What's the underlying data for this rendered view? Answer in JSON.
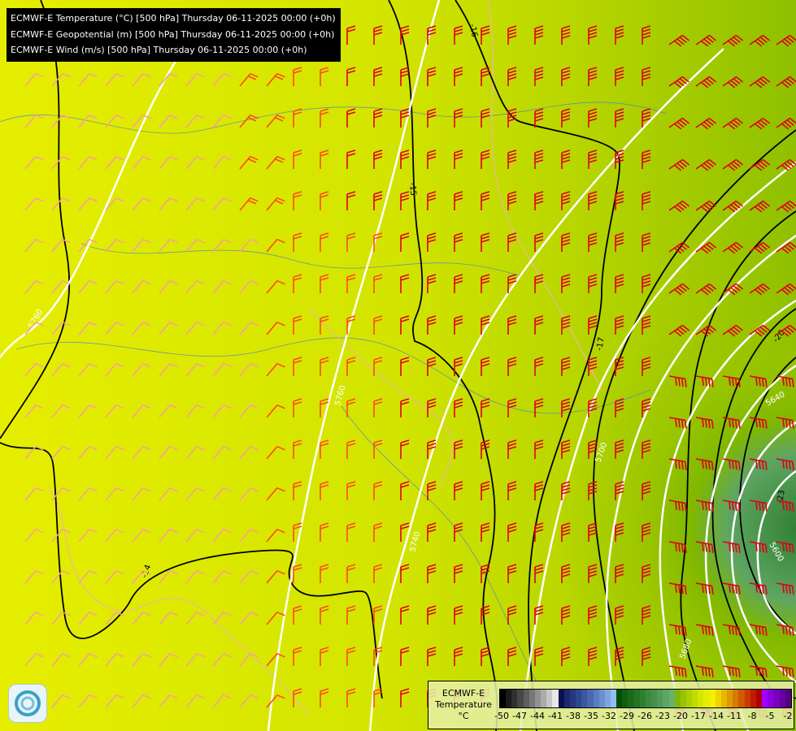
{
  "header": {
    "lines": [
      "ECMWF-E Temperature (°C) [500 hPa] Thursday 06-11-2025 00:00 (+0h)",
      "ECMWF-E Geopotential (m) [500 hPa] Thursday 06-11-2025 00:00 (+0h)",
      "ECMWF-E Wind (m/s) [500 hPa] Thursday 06-11-2025 00:00 (+0h)"
    ]
  },
  "legend": {
    "title_line1": "ECMWF-E",
    "title_line2": "Temperature",
    "unit": "°C",
    "ticks": [
      "-50",
      "-47",
      "-44",
      "-41",
      "-38",
      "-35",
      "-32",
      "-29",
      "-26",
      "-23",
      "-20",
      "-17",
      "-14",
      "-11",
      "-8",
      "-5",
      "-2"
    ],
    "colors": [
      "#000000",
      "#1a1a1a",
      "#303030",
      "#474747",
      "#5e5e5e",
      "#787878",
      "#929292",
      "#ababab",
      "#c6c6c6",
      "#e6e6e6",
      "#0a1050",
      "#1c2870",
      "#253780",
      "#2d4690",
      "#3a57a0",
      "#4a68b0",
      "#5b7cc0",
      "#6b8fd0",
      "#7ea5e0",
      "#92bdf0",
      "#005000",
      "#0e6010",
      "#1a6a1a",
      "#257425",
      "#2f7f30",
      "#3a8a3c",
      "#468f48",
      "#529a55",
      "#5ea562",
      "#6aaf70",
      "#80b800",
      "#98c400",
      "#acd000",
      "#c0dc00",
      "#d4e600",
      "#e6ee00",
      "#f4f000",
      "#f0d400",
      "#e8b800",
      "#e09a00",
      "#d87a00",
      "#d05a00",
      "#c83a00",
      "#c01a00",
      "#b00000",
      "#a000ff",
      "#8c00e0",
      "#7800c0",
      "#6400a0",
      "#500080"
    ]
  },
  "contour_labels": {
    "temperature": [
      "-16",
      "-15",
      "-14",
      "-17",
      "-20",
      "-23"
    ],
    "geopotential": [
      "5760",
      "5760",
      "5740",
      "5700",
      "5640",
      "5600",
      "5680"
    ]
  },
  "colors": {
    "barb_strong": "#e00018",
    "barb_medium": "#ff4a1a",
    "barb_weak": "#f4a0a0",
    "geopotential": "#ffffff",
    "temperature_contour": "#000000"
  }
}
